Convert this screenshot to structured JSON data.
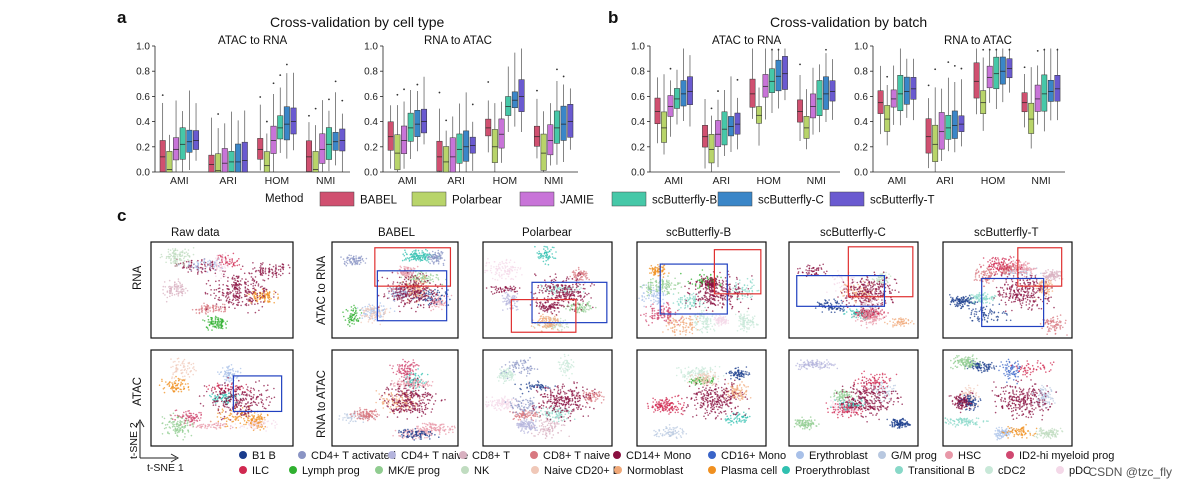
{
  "panel_labels": {
    "a": "a",
    "b": "b",
    "c": "c"
  },
  "panel_a": {
    "title": "Cross-validation by cell type",
    "subplots": [
      "ATAC to RNA",
      "RNA to ATAC"
    ]
  },
  "panel_b": {
    "title": "Cross-validation by batch",
    "subplots": [
      "ATAC to RNA",
      "RNA to ATAC"
    ]
  },
  "method_legend": {
    "title": "Method",
    "items": [
      {
        "name": "BABEL",
        "color": "#d05070"
      },
      {
        "name": "Polarbear",
        "color": "#b8d46a"
      },
      {
        "name": "JAMIE",
        "color": "#c874d8"
      },
      {
        "name": "scButterfly-B",
        "color": "#46c8a8"
      },
      {
        "name": "scButterfly-C",
        "color": "#3a86c8"
      },
      {
        "name": "scButterfly-T",
        "color": "#6a5ad0"
      }
    ]
  },
  "chart_data": [
    {
      "type": "box",
      "panel": "a",
      "title": "ATAC to RNA",
      "categories": [
        "AMI",
        "ARI",
        "HOM",
        "NMI"
      ],
      "ylim": [
        0,
        1.0
      ],
      "yticks": [
        "0.0",
        "0.2",
        "0.4",
        "0.6",
        "0.8",
        "1.0"
      ],
      "series": [
        {
          "name": "BABEL",
          "medians": [
            0.12,
            0.06,
            0.18,
            0.12
          ]
        },
        {
          "name": "Polarbear",
          "medians": [
            0.02,
            0.01,
            0.05,
            0.02
          ]
        },
        {
          "name": "JAMIE",
          "medians": [
            0.18,
            0.07,
            0.25,
            0.18
          ]
        },
        {
          "name": "scButterfly-B",
          "medians": [
            0.22,
            0.08,
            0.35,
            0.22
          ]
        },
        {
          "name": "scButterfly-C",
          "medians": [
            0.24,
            0.08,
            0.38,
            0.24
          ]
        },
        {
          "name": "scButterfly-T",
          "medians": [
            0.25,
            0.09,
            0.4,
            0.25
          ]
        }
      ]
    },
    {
      "type": "box",
      "panel": "a",
      "title": "RNA to ATAC",
      "categories": [
        "AMI",
        "ARI",
        "HOM",
        "NMI"
      ],
      "ylim": [
        0,
        1.0
      ],
      "yticks": [
        "0.0",
        "0.2",
        "0.4",
        "0.6",
        "0.8",
        "1.0"
      ],
      "series": [
        {
          "name": "BABEL",
          "medians": [
            0.28,
            0.12,
            0.35,
            0.28
          ]
        },
        {
          "name": "Polarbear",
          "medians": [
            0.15,
            0.08,
            0.2,
            0.15
          ]
        },
        {
          "name": "JAMIE",
          "medians": [
            0.25,
            0.12,
            0.3,
            0.25
          ]
        },
        {
          "name": "scButterfly-B",
          "medians": [
            0.35,
            0.18,
            0.52,
            0.35
          ]
        },
        {
          "name": "scButterfly-C",
          "medians": [
            0.38,
            0.2,
            0.57,
            0.38
          ]
        },
        {
          "name": "scButterfly-T",
          "medians": [
            0.4,
            0.21,
            0.6,
            0.4
          ]
        }
      ]
    },
    {
      "type": "box",
      "panel": "b",
      "title": "ATAC to RNA",
      "categories": [
        "AMI",
        "ARI",
        "HOM",
        "NMI"
      ],
      "ylim": [
        0,
        1.0
      ],
      "yticks": [
        "0.0",
        "0.2",
        "0.4",
        "0.6",
        "0.8",
        "1.0"
      ],
      "series": [
        {
          "name": "BABEL",
          "medians": [
            0.48,
            0.28,
            0.62,
            0.48
          ]
        },
        {
          "name": "Polarbear",
          "medians": [
            0.35,
            0.18,
            0.45,
            0.35
          ]
        },
        {
          "name": "JAMIE",
          "medians": [
            0.52,
            0.3,
            0.68,
            0.52
          ]
        },
        {
          "name": "scButterfly-B",
          "medians": [
            0.58,
            0.34,
            0.72,
            0.58
          ]
        },
        {
          "name": "scButterfly-C",
          "medians": [
            0.62,
            0.36,
            0.76,
            0.62
          ]
        },
        {
          "name": "scButterfly-T",
          "medians": [
            0.64,
            0.38,
            0.78,
            0.64
          ]
        }
      ]
    },
    {
      "type": "box",
      "panel": "b",
      "title": "RNA to ATAC",
      "categories": [
        "AMI",
        "ARI",
        "HOM",
        "NMI"
      ],
      "ylim": [
        0,
        1.0
      ],
      "yticks": [
        "0.0",
        "0.2",
        "0.4",
        "0.6",
        "0.8",
        "1.0"
      ],
      "series": [
        {
          "name": "BABEL",
          "medians": [
            0.55,
            0.28,
            0.72,
            0.55
          ]
        },
        {
          "name": "Polarbear",
          "medians": [
            0.42,
            0.22,
            0.55,
            0.42
          ]
        },
        {
          "name": "JAMIE",
          "medians": [
            0.58,
            0.32,
            0.75,
            0.58
          ]
        },
        {
          "name": "scButterfly-B",
          "medians": [
            0.62,
            0.35,
            0.78,
            0.62
          ]
        },
        {
          "name": "scButterfly-C",
          "medians": [
            0.64,
            0.37,
            0.8,
            0.64
          ]
        },
        {
          "name": "scButterfly-T",
          "medians": [
            0.66,
            0.38,
            0.82,
            0.66
          ]
        }
      ]
    }
  ],
  "panel_c": {
    "columns": [
      "Raw data",
      "BABEL",
      "Polarbear",
      "scButterfly-B",
      "scButterfly-C",
      "scButterfly-T"
    ],
    "rows_raw": [
      "RNA",
      "ATAC"
    ],
    "rows_translated": [
      "ATAC to RNA",
      "RNA to ATAC"
    ],
    "axis_x": "t-SNE 1",
    "axis_y": "t-SNE 2"
  },
  "celltype_legend": [
    {
      "name": "B1 B",
      "color": "#1a3c8c"
    },
    {
      "name": "CD4+ T activated",
      "color": "#8a94c4"
    },
    {
      "name": "CD4+ T naive",
      "color": "#b4b4dc"
    },
    {
      "name": "CD8+ T",
      "color": "#d8b0c0"
    },
    {
      "name": "CD8+ T naive",
      "color": "#d87880"
    },
    {
      "name": "CD14+ Mono",
      "color": "#8a1040"
    },
    {
      "name": "CD16+ Mono",
      "color": "#3a64c8"
    },
    {
      "name": "Erythroblast",
      "color": "#a8c0e8"
    },
    {
      "name": "G/M prog",
      "color": "#b8c8e0"
    },
    {
      "name": "HSC",
      "color": "#e898a8"
    },
    {
      "name": "ID2-hi myeloid prog",
      "color": "#d04870"
    },
    {
      "name": "ILC",
      "color": "#d02850"
    },
    {
      "name": "Lymph prog",
      "color": "#30b030"
    },
    {
      "name": "MK/E prog",
      "color": "#90cc90"
    },
    {
      "name": "NK",
      "color": "#c0dcc0"
    },
    {
      "name": "Naive CD20+ B",
      "color": "#f0c8b8"
    },
    {
      "name": "Normoblast",
      "color": "#f0a878"
    },
    {
      "name": "Plasma cell",
      "color": "#f09020"
    },
    {
      "name": "Proerythroblast",
      "color": "#30c0b0"
    },
    {
      "name": "Transitional B",
      "color": "#88d8c8"
    },
    {
      "name": "cDC2",
      "color": "#c8e8d8"
    },
    {
      "name": "pDC",
      "color": "#f4d8e8"
    }
  ],
  "watermark": "CSDN @tzc_fly"
}
